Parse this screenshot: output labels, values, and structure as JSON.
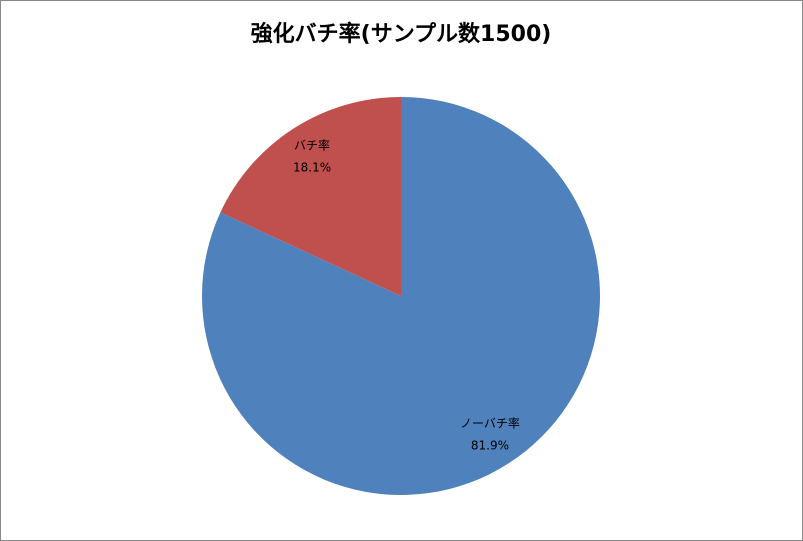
{
  "chart_data": {
    "type": "pie",
    "title": "強化バチ率(サンプル数1500)",
    "categories": [
      "ノーバチ率",
      "バチ率"
    ],
    "values": [
      81.9,
      18.1
    ],
    "value_labels": [
      "81.9%",
      "18.1%"
    ],
    "colors": [
      "#4f81bd",
      "#c0504d"
    ]
  }
}
